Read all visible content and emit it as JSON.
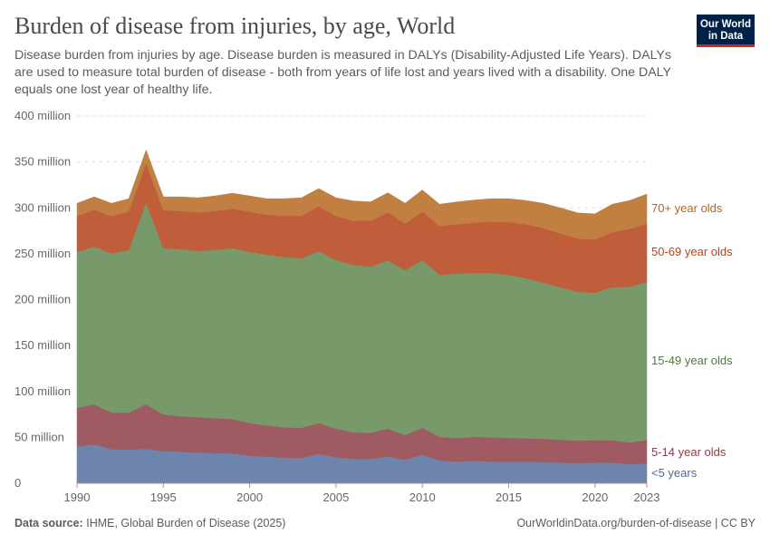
{
  "header": {
    "title": "Burden of disease from injuries, by age, World",
    "subtitle": "Disease burden from injuries by age. Disease burden is measured in DALYs (Disability-Adjusted Life Years). DALYs are used to measure total burden of disease - both from years of life lost and years lived with a disability. One DALY equals one lost year of healthy life.",
    "logo_text": "Our World in Data"
  },
  "footer": {
    "source_label": "Data source:",
    "source": "IHME, Global Burden of Disease (2025)",
    "url": "OurWorldinData.org/burden-of-disease | CC BY"
  },
  "chart_data": {
    "type": "area",
    "stacked": true,
    "title": "Burden of disease from injuries, by age, World",
    "xlabel": "",
    "ylabel": "",
    "ylim": [
      0,
      400000000
    ],
    "yticks": [
      0,
      50000000,
      100000000,
      150000000,
      200000000,
      250000000,
      300000000,
      350000000,
      400000000
    ],
    "ytick_labels": [
      "0",
      "50 million",
      "100 million",
      "150 million",
      "200 million",
      "250 million",
      "300 million",
      "350 million",
      "400 million"
    ],
    "xticks": [
      1990,
      1995,
      2000,
      2005,
      2010,
      2015,
      2020,
      2023
    ],
    "xtick_labels": [
      "1990",
      "1995",
      "2000",
      "2005",
      "2010",
      "2015",
      "2020",
      "2023"
    ],
    "grid": "horizontal dashed",
    "legend": "right (inline labels)",
    "unit_note": "values in millions of DALYs",
    "x": [
      1990,
      1991,
      1992,
      1993,
      1994,
      1995,
      1996,
      1997,
      1998,
      1999,
      2000,
      2001,
      2002,
      2003,
      2004,
      2005,
      2006,
      2007,
      2008,
      2009,
      2010,
      2011,
      2012,
      2013,
      2014,
      2015,
      2016,
      2017,
      2018,
      2019,
      2020,
      2021,
      2022,
      2023
    ],
    "series": [
      {
        "name": "<5 years",
        "color": "#6d85ad",
        "label_color": "#4c6a9c",
        "values": [
          40,
          42.5,
          37,
          36.5,
          37.5,
          35,
          34.5,
          33.5,
          33,
          32.5,
          30,
          29,
          28,
          27.5,
          32,
          28.5,
          26.5,
          26.5,
          29,
          25.5,
          31,
          25,
          23.5,
          24.5,
          23.5,
          23.5,
          23.5,
          23,
          22.5,
          22,
          22.5,
          22.5,
          21,
          21.5
        ]
      },
      {
        "name": "5-14 year olds",
        "color": "#a05a62",
        "label_color": "#8f3a48",
        "values": [
          42,
          43.5,
          40,
          40.5,
          48.5,
          40,
          38.5,
          38.5,
          38,
          37.5,
          35.5,
          34,
          33,
          33,
          33.5,
          31,
          29,
          28.5,
          30.5,
          27,
          29.5,
          25.5,
          26,
          26,
          26.5,
          26,
          25.5,
          25.5,
          25,
          24.5,
          24.5,
          24.5,
          23.5,
          25.5
        ]
      },
      {
        "name": "15-49 year olds",
        "color": "#789a6b",
        "label_color": "#4f7a3e",
        "values": [
          170,
          172,
          173.5,
          177,
          220,
          181,
          182,
          181,
          183.5,
          186,
          186.5,
          186,
          185.5,
          184.5,
          187.5,
          183.5,
          182.5,
          181,
          183.5,
          179.5,
          182.5,
          176.5,
          179,
          178.5,
          179,
          177.5,
          174.5,
          170,
          166,
          162,
          160.5,
          166.5,
          169.5,
          172.5
        ]
      },
      {
        "name": "50-69 year olds",
        "color": "#c05d3a",
        "label_color": "#b8431e",
        "values": [
          39,
          40,
          40.5,
          42,
          42.5,
          41.5,
          41.5,
          42,
          42,
          43,
          44,
          43.5,
          45,
          46.5,
          48.5,
          48,
          48,
          50,
          52,
          51,
          53,
          53,
          53.5,
          55,
          56,
          57.5,
          58.5,
          59.5,
          58.5,
          58,
          58,
          60,
          63,
          63.5
        ]
      },
      {
        "name": "70+ year olds",
        "color": "#c17f41",
        "label_color": "#b4661e",
        "values": [
          14,
          14,
          14,
          14,
          14.5,
          14.5,
          15.5,
          16,
          16.5,
          17,
          17,
          17.5,
          18.5,
          19.5,
          19.5,
          20,
          21.5,
          20.5,
          21.5,
          22,
          23.5,
          24,
          24.5,
          24.5,
          25,
          25.5,
          26,
          27,
          28,
          28,
          28,
          30.5,
          31,
          32
        ]
      }
    ]
  }
}
